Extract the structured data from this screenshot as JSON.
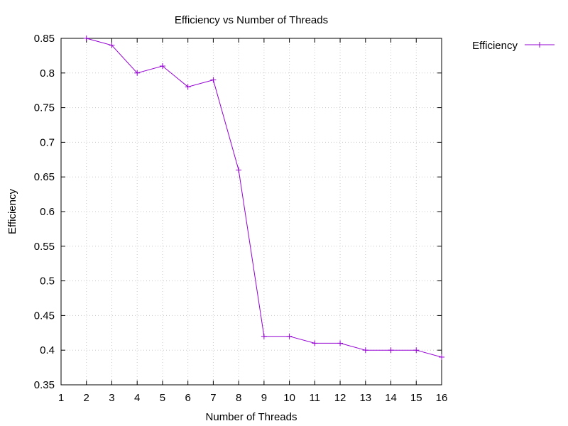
{
  "chart_data": {
    "type": "line",
    "title": "Efficiency vs Number of Threads",
    "xlabel": "Number of Threads",
    "ylabel": "Efficiency",
    "xlim": [
      1,
      16
    ],
    "ylim": [
      0.35,
      0.85
    ],
    "xticks": [
      "1",
      "2",
      "3",
      "4",
      "5",
      "6",
      "7",
      "8",
      "9",
      "10",
      "11",
      "12",
      "13",
      "14",
      "15",
      "16"
    ],
    "yticks": [
      "0.35",
      "0.4",
      "0.45",
      "0.5",
      "0.55",
      "0.6",
      "0.65",
      "0.7",
      "0.75",
      "0.8",
      "0.85"
    ],
    "grid": true,
    "legend_position": "outside-top-right",
    "series": [
      {
        "name": "Efficiency",
        "color": "#9400d3",
        "marker": "plus",
        "x": [
          2,
          3,
          4,
          5,
          6,
          7,
          8,
          9,
          10,
          11,
          12,
          13,
          14,
          15,
          16
        ],
        "y": [
          0.85,
          0.84,
          0.8,
          0.81,
          0.78,
          0.79,
          0.66,
          0.42,
          0.42,
          0.41,
          0.41,
          0.4,
          0.4,
          0.4,
          0.39
        ]
      }
    ]
  }
}
